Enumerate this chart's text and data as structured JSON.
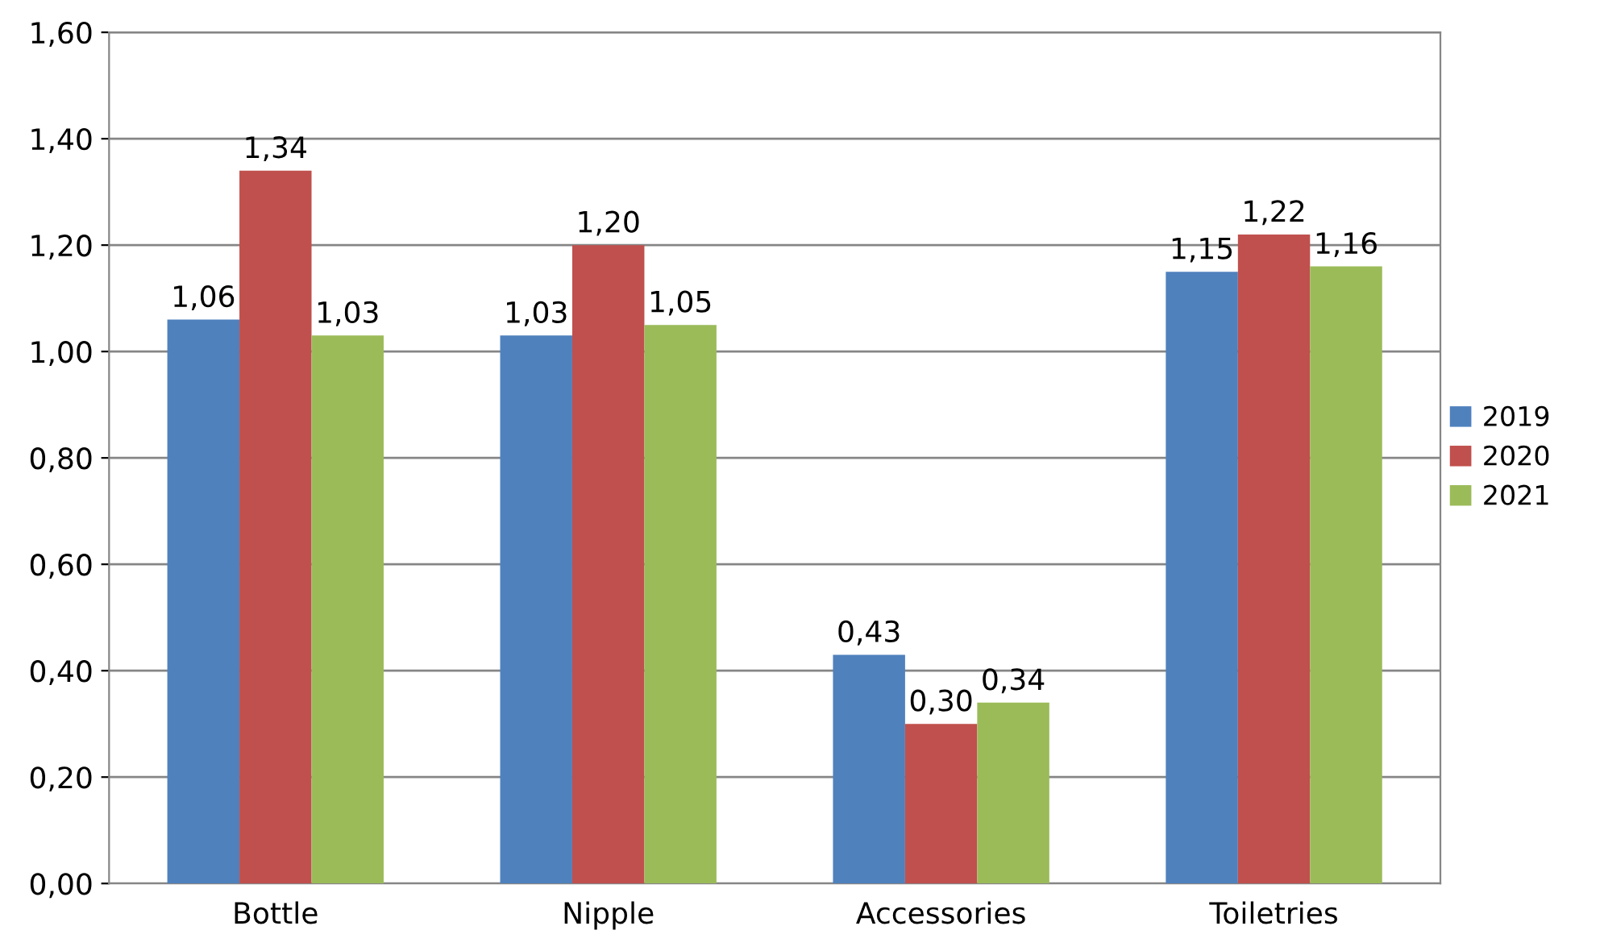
{
  "chart_data": {
    "type": "bar",
    "categories": [
      "Bottle",
      "Nipple",
      "Accessories",
      "Toiletries"
    ],
    "series": [
      {
        "name": "2019",
        "color": "#4f81bd",
        "values": [
          1.06,
          1.03,
          0.43,
          1.15
        ],
        "value_labels": [
          "1,06",
          "1,03",
          "0,43",
          "1,15"
        ]
      },
      {
        "name": "2020",
        "color": "#c0504d",
        "values": [
          1.34,
          1.2,
          0.3,
          1.22
        ],
        "value_labels": [
          "1,34",
          "1,20",
          "0,30",
          "1,22"
        ]
      },
      {
        "name": "2021",
        "color": "#9bbb59",
        "values": [
          1.03,
          1.05,
          0.34,
          1.16
        ],
        "value_labels": [
          "1,03",
          "1,05",
          "0,34",
          "1,16"
        ]
      }
    ],
    "ylim": [
      0,
      1.6
    ],
    "yticks": [
      {
        "value": 0,
        "label": "0,00"
      },
      {
        "value": 0.2,
        "label": "0,20"
      },
      {
        "value": 0.4,
        "label": "0,40"
      },
      {
        "value": 0.6,
        "label": "0,60"
      },
      {
        "value": 0.8,
        "label": "0,80"
      },
      {
        "value": 1.0,
        "label": "1,00"
      },
      {
        "value": 1.2,
        "label": "1,20"
      },
      {
        "value": 1.4,
        "label": "1,40"
      },
      {
        "value": 1.6,
        "label": "1,60"
      }
    ],
    "grid": "y",
    "legend": "right"
  }
}
